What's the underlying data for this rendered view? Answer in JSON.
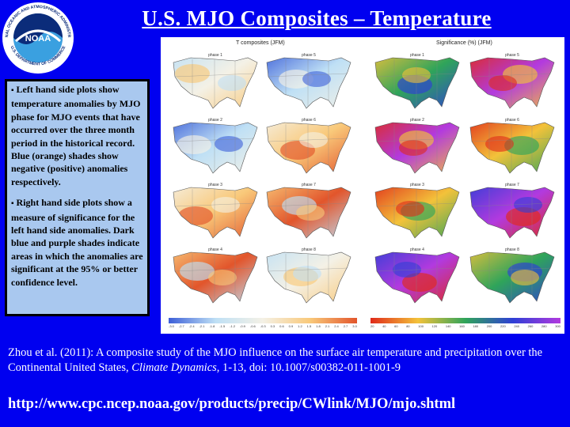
{
  "slide": {
    "title": "U.S. MJO Composites – Temperature",
    "logo": {
      "center_text": "NOAA",
      "ring_text_top": "NATIONAL OCEANIC AND ATMOSPHERIC ADMINISTRATION",
      "ring_text_bottom": "U.S. DEPARTMENT OF COMMERCE"
    },
    "notes": [
      "Left hand side plots show temperature anomalies by MJO phase for MJO events that have occurred over the three month period in the historical record. Blue (orange) shades show negative (positive) anomalies respectively.",
      "Right hand side plots show a measure of significance for the left hand side anomalies. Dark blue and purple shades indicate areas in which the anomalies are significant at the 95% or better confidence level."
    ],
    "bullet_glyph": "▪",
    "citation_before": "Zhou et al. (2011): A composite study of the MJO influence on the surface air temperature and precipitation over the Continental United States, ",
    "citation_journal": "Climate Dynamics",
    "citation_after": ", 1-13, doi: 10.1007/s00382-011-1001-9",
    "url": "http://www.cpc.ncep.noaa.gov/products/precip/CWlink/MJO/mjo.shtml"
  },
  "figure": {
    "left_header": "T composites (JFM)",
    "right_header": "Significance (%) (JFM)",
    "phase_labels": [
      "phase 1",
      "phase 5",
      "phase 2",
      "phase 6",
      "phase 3",
      "phase 7",
      "phase 4",
      "phase 8"
    ],
    "left_colorbar_ticks": [
      "-3.0",
      "-2.7",
      "-2.4",
      "-2.1",
      "-1.8",
      "-1.5",
      "-1.2",
      "-0.9",
      "-0.6",
      "-0.3",
      "0.3",
      "0.6",
      "0.9",
      "1.2",
      "1.5",
      "1.8",
      "2.1",
      "2.4",
      "2.7",
      "3.0"
    ],
    "right_colorbar_ticks": [
      "20",
      "40",
      "60",
      "80",
      "100",
      "120",
      "140",
      "160",
      "180",
      "200",
      "220",
      "240",
      "260",
      "280",
      "300"
    ],
    "colors": {
      "cold_dark": "#3c5fd8",
      "cold_light": "#bfe0f5",
      "neutral": "#f4f1e6",
      "warm_light": "#f9c97a",
      "warm_dark": "#e2552b",
      "sig_low": "#e02a1a",
      "sig_mid": "#f3c23a",
      "sig_high": "#2fa45a",
      "sig_very_high": "#2f3fd6",
      "sig_max": "#b23adf"
    }
  }
}
